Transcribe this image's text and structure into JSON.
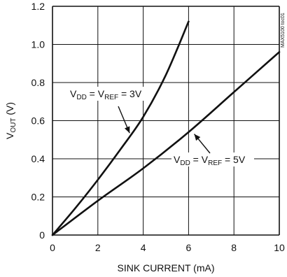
{
  "chart_data": {
    "type": "line",
    "xlabel": "SINK CURRENT (mA)",
    "ylabel": {
      "main": "V",
      "sub": "OUT",
      "unit": " (V)"
    },
    "xlim": [
      0,
      10
    ],
    "ylim": [
      0,
      1.2
    ],
    "xticks": [
      "0",
      "2",
      "4",
      "6",
      "8",
      "10"
    ],
    "yticks": [
      "0",
      "0.2",
      "0.4",
      "0.6",
      "0.8",
      "1.0",
      "1.2"
    ],
    "grid": true,
    "side_label": "MAX5100 toc01",
    "series": [
      {
        "name": "VDD = VREF = 3V",
        "x": [
          0,
          1,
          2,
          3,
          4,
          5,
          6
        ],
        "y": [
          0,
          0.14,
          0.29,
          0.45,
          0.62,
          0.84,
          1.12
        ]
      },
      {
        "name": "VDD = VREF = 5V",
        "x": [
          0,
          2,
          4,
          6,
          8,
          10
        ],
        "y": [
          0,
          0.18,
          0.35,
          0.54,
          0.75,
          0.96
        ]
      }
    ],
    "annotations": [
      {
        "series": 0,
        "parts": [
          {
            "t": "V",
            "sub": false
          },
          {
            "t": "DD",
            "sub": true
          },
          {
            "t": " = V",
            "sub": false
          },
          {
            "t": "REF",
            "sub": true
          },
          {
            "t": " = 3V",
            "sub": false
          }
        ],
        "arrow_to": [
          3.4,
          0.535
        ]
      },
      {
        "series": 1,
        "parts": [
          {
            "t": "V",
            "sub": false
          },
          {
            "t": "DD",
            "sub": true
          },
          {
            "t": " = V",
            "sub": false
          },
          {
            "t": "REF",
            "sub": true
          },
          {
            "t": " = 5V",
            "sub": false
          }
        ],
        "arrow_to": [
          6.25,
          0.53
        ]
      }
    ]
  }
}
